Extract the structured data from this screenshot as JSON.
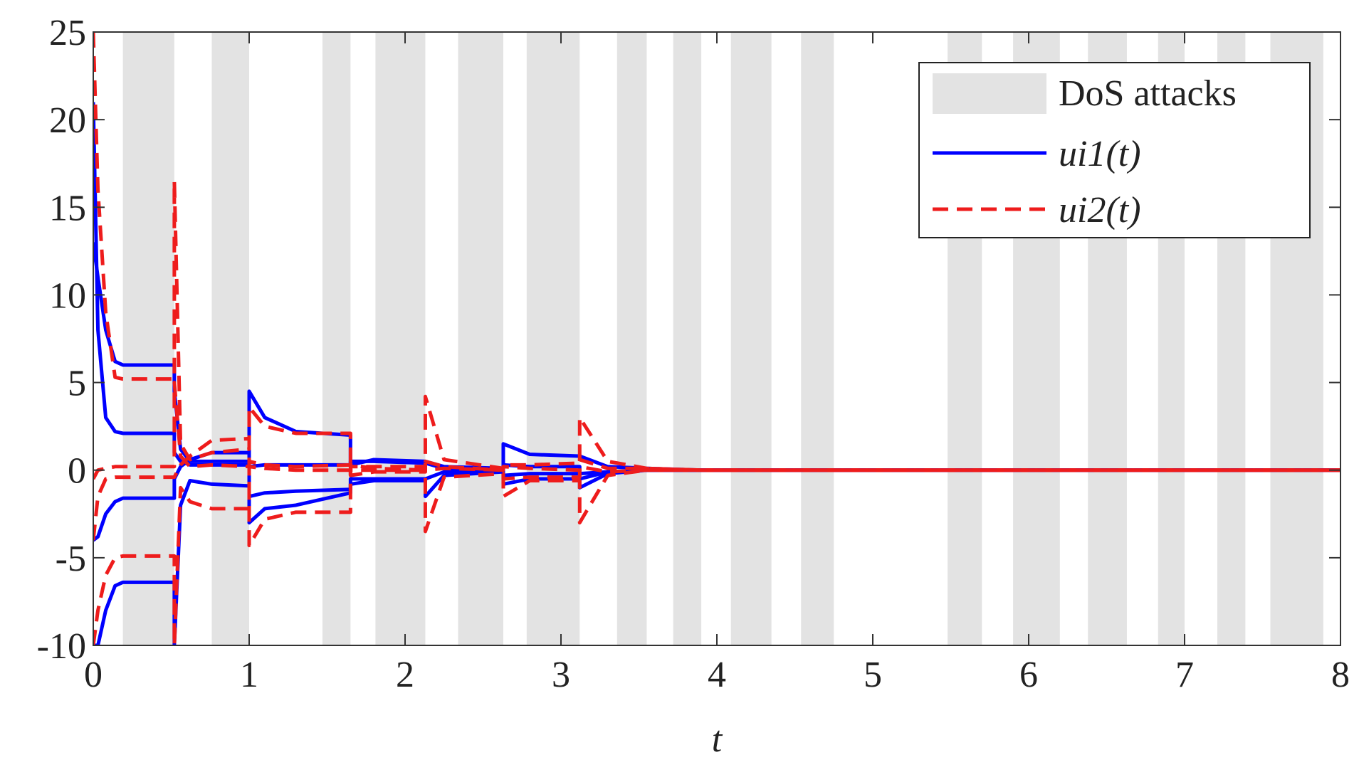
{
  "chart_data": {
    "type": "line",
    "x_label": "t",
    "xlim": [
      0,
      8
    ],
    "xticks": [
      0,
      1,
      2,
      3,
      4,
      5,
      6,
      7,
      8
    ],
    "ylim": [
      -10,
      25
    ],
    "yticks": [
      -10,
      -5,
      0,
      5,
      10,
      15,
      20,
      25
    ],
    "legend": "upper right",
    "shading": {
      "name": "DoS attacks",
      "color": "#e3e3e3",
      "intervals": [
        [
          0.19,
          0.52
        ],
        [
          0.76,
          1.0
        ],
        [
          1.47,
          1.65
        ],
        [
          1.81,
          2.13
        ],
        [
          2.34,
          2.63
        ],
        [
          2.78,
          3.12
        ],
        [
          3.36,
          3.55
        ],
        [
          3.72,
          3.9
        ],
        [
          4.09,
          4.35
        ],
        [
          4.54,
          4.75
        ],
        [
          5.48,
          5.7
        ],
        [
          5.9,
          6.2
        ],
        [
          6.38,
          6.63
        ],
        [
          6.83,
          7.0
        ],
        [
          7.21,
          7.39
        ],
        [
          7.55,
          7.89
        ]
      ]
    },
    "x": [
      0,
      0.03,
      0.08,
      0.14,
      0.19,
      0.52,
      0.52,
      0.56,
      0.62,
      0.76,
      1.0,
      1.0,
      1.1,
      1.3,
      1.65,
      1.65,
      1.8,
      2.13,
      2.13,
      2.25,
      2.63,
      2.63,
      2.8,
      3.12,
      3.12,
      3.3,
      3.55,
      3.9,
      4.35,
      8
    ],
    "series": [
      {
        "name": "ui1(t)",
        "color": "#0000ff",
        "dash": "solid",
        "values": [
          [
            13,
            11,
            8,
            6.2,
            6,
            6,
            4.5,
            1.2,
            0.5,
            0.5,
            0.5,
            4.5,
            3,
            2.2,
            2,
            0.3,
            0.6,
            0.5,
            0.5,
            0.2,
            0.1,
            1.5,
            0.9,
            0.8,
            0.8,
            0.2,
            0.1,
            0,
            0,
            0
          ],
          [
            21,
            8,
            3,
            2.2,
            2.1,
            2.1,
            1,
            0.5,
            0.3,
            0.3,
            0.3,
            0.2,
            0.3,
            0.3,
            0.3,
            0.5,
            0.5,
            0.4,
            0.4,
            0.1,
            0.1,
            -0.3,
            -0.2,
            -0.2,
            -0.2,
            -0.1,
            0,
            0,
            0,
            0
          ],
          [
            -4,
            -3.8,
            -2.5,
            -1.8,
            -1.6,
            -1.6,
            -0.5,
            0.2,
            0.6,
            1,
            1,
            -1.5,
            -1.3,
            -1.2,
            -1.1,
            -0.5,
            -0.5,
            -0.5,
            -0.5,
            -0.1,
            0,
            -0.8,
            -0.5,
            -0.5,
            -0.5,
            -0.1,
            0,
            0,
            0,
            0
          ],
          [
            -10,
            -10,
            -8,
            -6.6,
            -6.4,
            -6.4,
            -10,
            -2,
            -0.6,
            -0.8,
            -0.9,
            -3,
            -2.2,
            -2,
            -1.3,
            -0.8,
            -0.6,
            -0.6,
            -1.5,
            -0.3,
            -0.1,
            0.3,
            0.2,
            0.2,
            -1,
            -0.2,
            0,
            0,
            0,
            0
          ]
        ]
      },
      {
        "name": "ui2(t)",
        "color": "#ee1c1c",
        "dash": "dashed",
        "values": [
          [
            25,
            16,
            9,
            5.3,
            5.2,
            5.2,
            16.5,
            1.5,
            0.6,
            1,
            1.2,
            3.6,
            2.5,
            2.1,
            2.1,
            -0.3,
            -0.1,
            -0.1,
            4.2,
            0.6,
            0.1,
            0.3,
            0.3,
            0.4,
            3,
            0.5,
            0.1,
            0,
            0,
            0
          ],
          [
            -0.5,
            0,
            0.1,
            0.2,
            0.2,
            0.2,
            5,
            0.8,
            0.2,
            0.3,
            0.2,
            0.5,
            0.3,
            0.2,
            0.3,
            0.3,
            0.1,
            0,
            -3.5,
            -0.4,
            -0.2,
            -1.5,
            -0.6,
            -0.6,
            -3,
            -0.3,
            0,
            0,
            0,
            0
          ],
          [
            -4,
            -1.5,
            -0.5,
            -0.4,
            -0.4,
            -0.4,
            -0.4,
            0.3,
            0.8,
            1.7,
            1.8,
            -4.3,
            -2.8,
            -2.4,
            -2.4,
            0.2,
            0.2,
            0.2,
            0,
            0.1,
            0,
            -0.5,
            -0.4,
            -0.4,
            0.6,
            0.1,
            0.1,
            0,
            0,
            0
          ],
          [
            -10,
            -8,
            -6,
            -5,
            -4.9,
            -4.9,
            -10,
            -1,
            -1.8,
            -2.2,
            -2.2,
            0.2,
            0.1,
            0,
            0,
            0,
            0,
            0,
            0.5,
            0.2,
            0,
            0.2,
            0.1,
            0,
            0.2,
            -0.1,
            0,
            0,
            0,
            0
          ]
        ]
      }
    ]
  }
}
